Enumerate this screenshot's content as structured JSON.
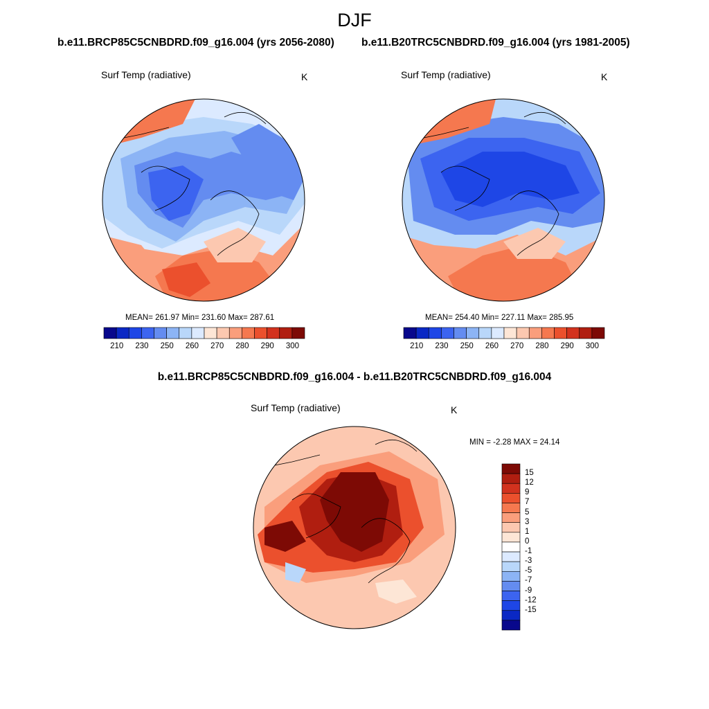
{
  "title": "DJF",
  "left_panel": {
    "run_title": "b.e11.BRCP85C5CNBDRD.f09_g16.004 (yrs 2056-2080)",
    "variable": "Surf Temp (radiative)",
    "units": "K",
    "stats": "MEAN= 261.97  Min= 231.60  Max= 287.61"
  },
  "right_panel": {
    "run_title": "b.e11.B20TRC5CNBDRD.f09_g16.004 (yrs 1981-2005)",
    "variable": "Surf Temp (radiative)",
    "units": "K",
    "stats": "MEAN= 254.40  Min= 227.11  Max= 285.95"
  },
  "diff_panel": {
    "run_title": "b.e11.BRCP85C5CNBDRD.f09_g16.004 - b.e11.B20TRC5CNBDRD.f09_g16.004",
    "variable": "Surf Temp (radiative)",
    "units": "K",
    "stats": "MIN =  -2.28 MAX =  24.14"
  },
  "abs_colorbar": {
    "tick_labels": [
      "210",
      "230",
      "250",
      "260",
      "270",
      "280",
      "290",
      "300"
    ],
    "colors": [
      "#08088c",
      "#0a28c4",
      "#1e46e6",
      "#3c64f0",
      "#648cf0",
      "#8cb4f5",
      "#b9d7fa",
      "#dceaff",
      "#fde6d6",
      "#fcc8b0",
      "#fa9e7c",
      "#f5784f",
      "#eb502d",
      "#d2321e",
      "#b01e10",
      "#7d0a05"
    ]
  },
  "diff_colorbar": {
    "tick_labels": [
      "15",
      "12",
      "9",
      "7",
      "5",
      "3",
      "1",
      "0",
      "-1",
      "-3",
      "-5",
      "-7",
      "-9",
      "-12",
      "-15"
    ],
    "colors": [
      "#7d0a05",
      "#b01e10",
      "#d2321e",
      "#eb502d",
      "#f5784f",
      "#fa9e7c",
      "#fcc8b0",
      "#fde6d6",
      "#ffffff",
      "#dceaff",
      "#b9d7fa",
      "#8cb4f5",
      "#648cf0",
      "#3c64f0",
      "#1e46e6",
      "#0a28c4",
      "#08088c"
    ]
  }
}
